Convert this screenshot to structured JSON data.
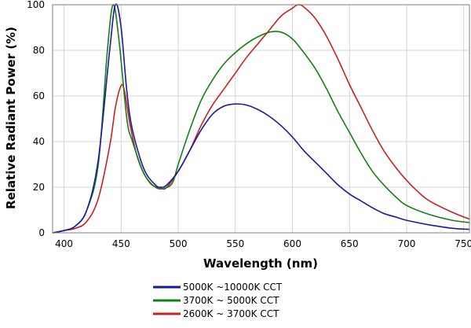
{
  "chart_data": {
    "type": "line",
    "title": "",
    "xlabel": "Wavelength (nm)",
    "ylabel": "Relative Radiant Power (%)",
    "xlim": [
      390,
      755
    ],
    "ylim": [
      0,
      100
    ],
    "x_ticks": [
      400,
      450,
      500,
      550,
      600,
      650,
      700,
      750
    ],
    "y_ticks": [
      0,
      20,
      40,
      60,
      80,
      100
    ],
    "grid": true,
    "legend_position": "below",
    "series": [
      {
        "name": "5000K ~10000K CCT",
        "color": "#1a1aa0",
        "points": [
          [
            390,
            0
          ],
          [
            400,
            1
          ],
          [
            410,
            3
          ],
          [
            420,
            10
          ],
          [
            430,
            32
          ],
          [
            440,
            80
          ],
          [
            445,
            100
          ],
          [
            450,
            90
          ],
          [
            455,
            62
          ],
          [
            460,
            45
          ],
          [
            470,
            28
          ],
          [
            480,
            21
          ],
          [
            485,
            20
          ],
          [
            490,
            21
          ],
          [
            500,
            27
          ],
          [
            510,
            36
          ],
          [
            520,
            45
          ],
          [
            530,
            52
          ],
          [
            540,
            55.5
          ],
          [
            550,
            56.5
          ],
          [
            560,
            56
          ],
          [
            570,
            54
          ],
          [
            580,
            51
          ],
          [
            590,
            47
          ],
          [
            600,
            42
          ],
          [
            610,
            36
          ],
          [
            620,
            31
          ],
          [
            630,
            26
          ],
          [
            640,
            21
          ],
          [
            650,
            17
          ],
          [
            660,
            14
          ],
          [
            670,
            11
          ],
          [
            680,
            8.5
          ],
          [
            690,
            7
          ],
          [
            700,
            5.5
          ],
          [
            720,
            3.5
          ],
          [
            740,
            2
          ],
          [
            755,
            1.5
          ]
        ]
      },
      {
        "name": "3700K ~ 5000K CCT",
        "color": "#148014",
        "points": [
          [
            390,
            0
          ],
          [
            400,
            1
          ],
          [
            410,
            3
          ],
          [
            420,
            10
          ],
          [
            430,
            30
          ],
          [
            438,
            80
          ],
          [
            443,
            100
          ],
          [
            448,
            85
          ],
          [
            455,
            50
          ],
          [
            460,
            40
          ],
          [
            470,
            26
          ],
          [
            480,
            20
          ],
          [
            488,
            19.5
          ],
          [
            495,
            22
          ],
          [
            500,
            30
          ],
          [
            510,
            45
          ],
          [
            520,
            58
          ],
          [
            530,
            67
          ],
          [
            540,
            74
          ],
          [
            550,
            79
          ],
          [
            560,
            83
          ],
          [
            570,
            86
          ],
          [
            580,
            88
          ],
          [
            590,
            88
          ],
          [
            600,
            85
          ],
          [
            610,
            79
          ],
          [
            620,
            72
          ],
          [
            630,
            63
          ],
          [
            640,
            53
          ],
          [
            650,
            44
          ],
          [
            660,
            35
          ],
          [
            670,
            27
          ],
          [
            680,
            21
          ],
          [
            690,
            16
          ],
          [
            700,
            12
          ],
          [
            720,
            8
          ],
          [
            740,
            5.5
          ],
          [
            755,
            4.5
          ]
        ]
      },
      {
        "name": "2600K ~ 3700K CCT",
        "color": "#cc2020",
        "points": [
          [
            390,
            0
          ],
          [
            400,
            1
          ],
          [
            410,
            2
          ],
          [
            420,
            5
          ],
          [
            430,
            15
          ],
          [
            440,
            38
          ],
          [
            445,
            55
          ],
          [
            450,
            64.5
          ],
          [
            453,
            62
          ],
          [
            458,
            47
          ],
          [
            465,
            32
          ],
          [
            475,
            22
          ],
          [
            485,
            19.5
          ],
          [
            490,
            20
          ],
          [
            500,
            27
          ],
          [
            510,
            36
          ],
          [
            520,
            47
          ],
          [
            530,
            56
          ],
          [
            540,
            63
          ],
          [
            550,
            70
          ],
          [
            560,
            77
          ],
          [
            570,
            83
          ],
          [
            580,
            89
          ],
          [
            590,
            95
          ],
          [
            600,
            98.5
          ],
          [
            605,
            100
          ],
          [
            610,
            99
          ],
          [
            620,
            94
          ],
          [
            630,
            86
          ],
          [
            640,
            76
          ],
          [
            650,
            65
          ],
          [
            660,
            55
          ],
          [
            670,
            45
          ],
          [
            680,
            36
          ],
          [
            690,
            29
          ],
          [
            700,
            23
          ],
          [
            710,
            18
          ],
          [
            720,
            14
          ],
          [
            740,
            9
          ],
          [
            755,
            6
          ]
        ]
      }
    ]
  }
}
